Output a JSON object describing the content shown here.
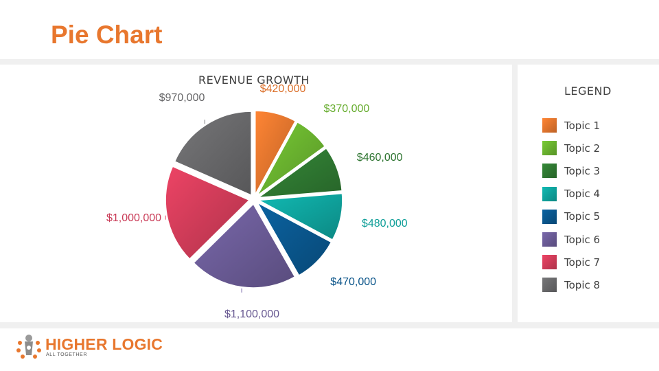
{
  "page": {
    "title": "Pie Chart"
  },
  "chart_data": {
    "type": "pie",
    "title": "REVENUE GROWTH",
    "legend_title": "LEGEND",
    "legend_position": "right",
    "slices": [
      {
        "name": "Topic 1",
        "value": 420000,
        "label": "$420,000",
        "color": "#E8772E"
      },
      {
        "name": "Topic 2",
        "value": 370000,
        "label": "$370,000",
        "color": "#6BB52F"
      },
      {
        "name": "Topic 3",
        "value": 460000,
        "label": "$460,000",
        "color": "#2F7A32"
      },
      {
        "name": "Topic 4",
        "value": 480000,
        "label": "$480,000",
        "color": "#0FA6A0"
      },
      {
        "name": "Topic 5",
        "value": 470000,
        "label": "$470,000",
        "color": "#0A5890"
      },
      {
        "name": "Topic 6",
        "value": 1100000,
        "label": "$1,100,000",
        "color": "#6C5D99"
      },
      {
        "name": "Topic 7",
        "value": 1000000,
        "label": "$1,000,000",
        "color": "#D43D5A"
      },
      {
        "name": "Topic 8",
        "value": 970000,
        "label": "$970,000",
        "color": "#6A6A6C"
      }
    ]
  },
  "logo": {
    "name": "HIGHER LOGIC",
    "tagline": "ALL TOGETHER",
    "color": "#E8772E"
  }
}
